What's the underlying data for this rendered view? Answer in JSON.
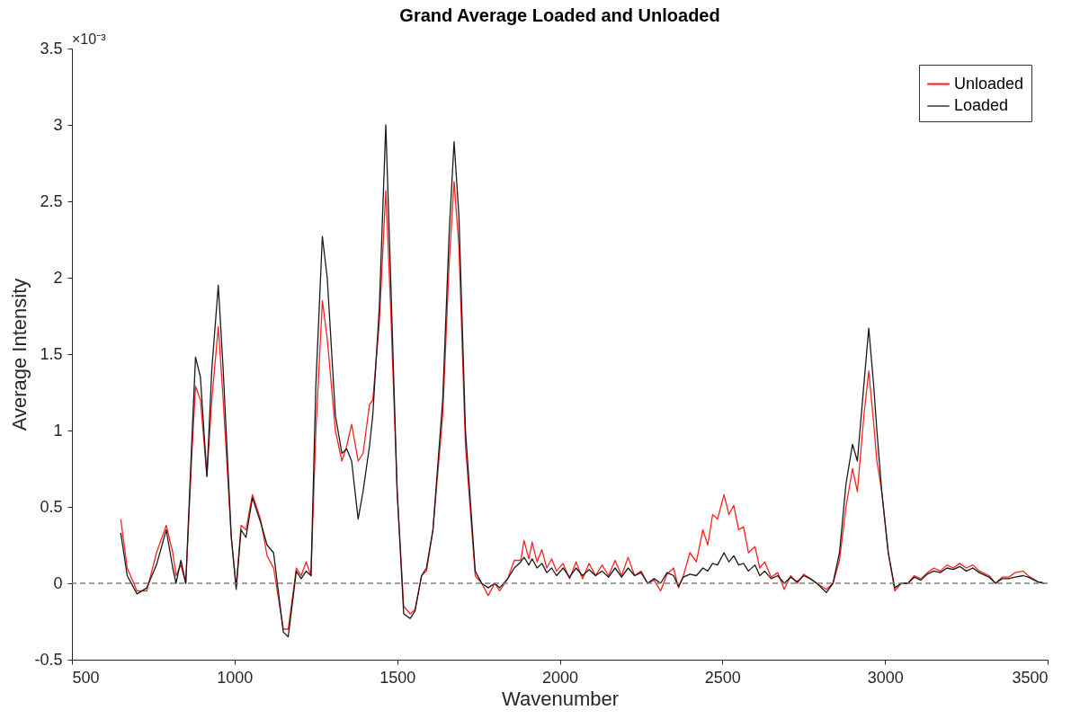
{
  "chart_data": {
    "type": "line",
    "title": "Grand Average Loaded and Unloaded",
    "xlabel": "Wavenumber",
    "ylabel": "Average Intensity",
    "annotations": [
      "×10⁻³"
    ],
    "x": [
      650,
      670,
      700,
      730,
      760,
      790,
      810,
      820,
      835,
      850,
      870,
      880,
      895,
      915,
      930,
      950,
      965,
      990,
      1005,
      1020,
      1035,
      1055,
      1080,
      1100,
      1120,
      1150,
      1165,
      1190,
      1205,
      1220,
      1235,
      1250,
      1270,
      1285,
      1310,
      1330,
      1345,
      1360,
      1380,
      1395,
      1415,
      1425,
      1445,
      1465,
      1480,
      1500,
      1520,
      1540,
      1555,
      1575,
      1590,
      1610,
      1640,
      1660,
      1675,
      1690,
      1710,
      1740,
      1760,
      1780,
      1800,
      1815,
      1840,
      1860,
      1880,
      1890,
      1905,
      1915,
      1930,
      1945,
      1960,
      1975,
      1990,
      2010,
      2030,
      2050,
      2070,
      2090,
      2110,
      2130,
      2150,
      2170,
      2190,
      2210,
      2230,
      2250,
      2270,
      2290,
      2310,
      2330,
      2350,
      2365,
      2380,
      2400,
      2420,
      2440,
      2455,
      2470,
      2485,
      2505,
      2520,
      2535,
      2550,
      2565,
      2580,
      2600,
      2615,
      2630,
      2650,
      2670,
      2690,
      2710,
      2730,
      2750,
      2770,
      2790,
      2820,
      2840,
      2860,
      2880,
      2900,
      2915,
      2935,
      2950,
      2965,
      2975,
      2990,
      3010,
      3030,
      3050,
      3070,
      3090,
      3110,
      3130,
      3150,
      3170,
      3190,
      3210,
      3230,
      3250,
      3270,
      3290,
      3320,
      3340,
      3360,
      3380,
      3400,
      3425,
      3440,
      3470,
      3490
    ],
    "series": [
      {
        "name": "Unloaded",
        "color": "#ff2020",
        "values": [
          0.42,
          0.1,
          -0.05,
          -0.05,
          0.2,
          0.38,
          0.2,
          0.05,
          0.12,
          0.0,
          0.9,
          1.29,
          1.2,
          0.7,
          1.2,
          1.68,
          1.2,
          0.3,
          -0.02,
          0.38,
          0.35,
          0.58,
          0.42,
          0.18,
          0.1,
          -0.3,
          -0.3,
          0.1,
          0.05,
          0.14,
          0.05,
          1.0,
          1.85,
          1.6,
          1.0,
          0.8,
          0.9,
          1.04,
          0.8,
          0.85,
          1.17,
          1.2,
          1.7,
          2.57,
          1.8,
          0.6,
          -0.15,
          -0.2,
          -0.17,
          0.05,
          0.08,
          0.35,
          1.1,
          2.1,
          2.63,
          2.2,
          0.9,
          0.05,
          0.0,
          -0.08,
          0.0,
          -0.05,
          0.03,
          0.15,
          0.15,
          0.28,
          0.16,
          0.27,
          0.14,
          0.22,
          0.1,
          0.16,
          0.08,
          0.13,
          0.03,
          0.14,
          0.03,
          0.13,
          0.05,
          0.12,
          0.05,
          0.15,
          0.05,
          0.17,
          0.05,
          0.08,
          0.0,
          0.02,
          -0.05,
          0.06,
          0.1,
          -0.03,
          0.05,
          0.2,
          0.14,
          0.35,
          0.25,
          0.45,
          0.42,
          0.58,
          0.45,
          0.51,
          0.35,
          0.37,
          0.2,
          0.24,
          0.1,
          0.14,
          0.04,
          0.07,
          -0.04,
          0.05,
          0.0,
          0.06,
          0.03,
          0.0,
          -0.04,
          0.0,
          0.15,
          0.5,
          0.75,
          0.6,
          1.1,
          1.39,
          1.05,
          0.8,
          0.6,
          0.2,
          -0.05,
          0.0,
          0.0,
          0.05,
          0.03,
          0.07,
          0.1,
          0.08,
          0.12,
          0.1,
          0.13,
          0.1,
          0.12,
          0.08,
          0.05,
          0.0,
          0.04,
          0.04,
          0.07,
          0.08,
          0.05,
          0.01,
          0.0
        ]
      },
      {
        "name": "Loaded",
        "color": "#1a1a1a",
        "values": [
          0.33,
          0.05,
          -0.07,
          -0.03,
          0.12,
          0.35,
          0.1,
          0.0,
          0.15,
          0.0,
          1.0,
          1.48,
          1.35,
          0.7,
          1.4,
          1.95,
          1.4,
          0.3,
          -0.04,
          0.35,
          0.3,
          0.56,
          0.4,
          0.25,
          0.2,
          -0.32,
          -0.35,
          0.08,
          0.03,
          0.08,
          0.05,
          1.3,
          2.27,
          2.0,
          1.1,
          0.85,
          0.88,
          0.8,
          0.42,
          0.6,
          0.9,
          1.1,
          1.8,
          3.0,
          2.0,
          0.6,
          -0.2,
          -0.23,
          -0.18,
          0.05,
          0.1,
          0.35,
          1.2,
          2.3,
          2.89,
          2.4,
          1.0,
          0.08,
          0.0,
          -0.03,
          0.0,
          -0.03,
          0.03,
          0.1,
          0.14,
          0.17,
          0.12,
          0.16,
          0.1,
          0.13,
          0.07,
          0.1,
          0.05,
          0.1,
          0.04,
          0.1,
          0.05,
          0.09,
          0.05,
          0.08,
          0.04,
          0.1,
          0.04,
          0.1,
          0.05,
          0.07,
          0.0,
          0.03,
          0.0,
          0.07,
          0.05,
          -0.02,
          0.04,
          0.06,
          0.05,
          0.1,
          0.08,
          0.13,
          0.12,
          0.2,
          0.14,
          0.18,
          0.12,
          0.13,
          0.08,
          0.12,
          0.05,
          0.08,
          0.03,
          0.05,
          0.0,
          0.04,
          0.01,
          0.05,
          0.03,
          0.0,
          -0.06,
          0.0,
          0.2,
          0.65,
          0.91,
          0.8,
          1.3,
          1.67,
          1.3,
          1.0,
          0.6,
          0.2,
          -0.03,
          0.0,
          0.0,
          0.04,
          0.02,
          0.06,
          0.08,
          0.07,
          0.1,
          0.09,
          0.11,
          0.08,
          0.1,
          0.07,
          0.04,
          0.0,
          0.03,
          0.03,
          0.04,
          0.05,
          0.04,
          0.01,
          0.0
        ]
      }
    ],
    "xlim": [
      500,
      3500
    ],
    "xticks": [
      500,
      1000,
      1500,
      2000,
      2500,
      3000,
      3500
    ],
    "ylim": [
      -0.5,
      3.5
    ],
    "yticks": [
      -0.5,
      0,
      0.5,
      1,
      1.5,
      2,
      2.5,
      3,
      3.5
    ],
    "ref_lines": [
      {
        "axis": "y",
        "value": 0,
        "color": "#808080",
        "line_style": "dashed"
      }
    ],
    "legend": "top right",
    "grid": false,
    "line_style": "solid"
  }
}
